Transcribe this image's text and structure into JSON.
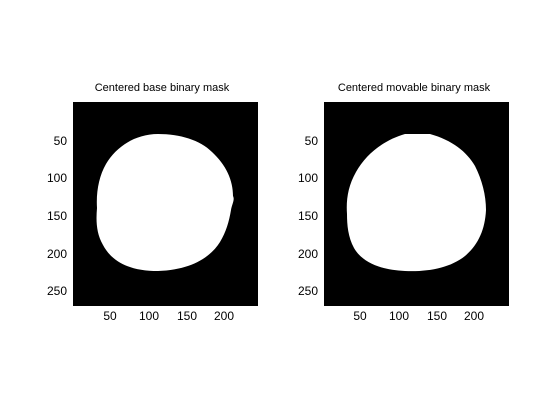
{
  "colors": {
    "background": "#ffffff",
    "mask_background": "#000000",
    "mask_foreground": "#ffffff",
    "text": "#000000"
  },
  "panels": [
    {
      "title": "Centered base binary mask",
      "x_ticks": [
        "50",
        "100",
        "150",
        "200"
      ],
      "y_ticks": [
        "50",
        "100",
        "150",
        "200",
        "250"
      ]
    },
    {
      "title": "Centered movable binary mask",
      "x_ticks": [
        "50",
        "100",
        "150",
        "200"
      ],
      "y_ticks": [
        "50",
        "100",
        "150",
        "200",
        "250"
      ]
    }
  ]
}
